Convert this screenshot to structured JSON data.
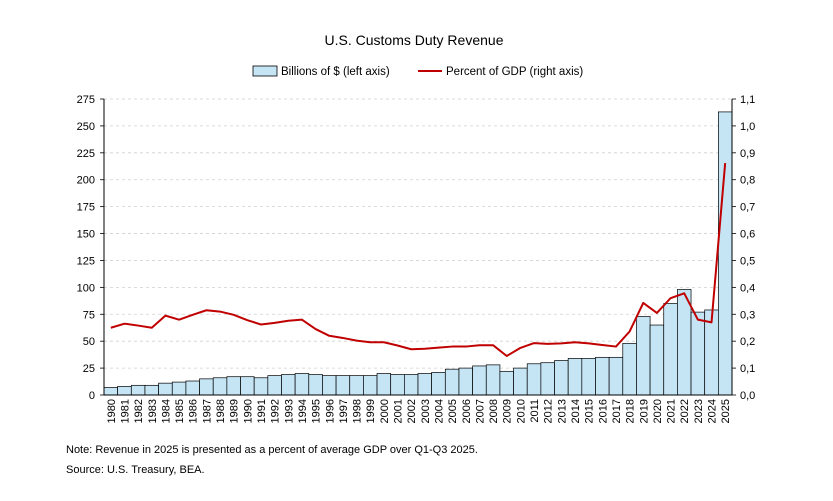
{
  "chart_data": {
    "type": "bar",
    "title": "U.S. Customs Duty Revenue",
    "categories": [
      "1980",
      "1981",
      "1982",
      "1983",
      "1984",
      "1985",
      "1986",
      "1987",
      "1988",
      "1989",
      "1990",
      "1991",
      "1992",
      "1993",
      "1994",
      "1995",
      "1996",
      "1997",
      "1998",
      "1999",
      "2000",
      "2001",
      "2002",
      "2003",
      "2004",
      "2005",
      "2006",
      "2007",
      "2008",
      "2009",
      "2010",
      "2011",
      "2012",
      "2013",
      "2014",
      "2015",
      "2016",
      "2017",
      "2018",
      "2019",
      "2020",
      "2021",
      "2022",
      "2023",
      "2024",
      "2025"
    ],
    "series": [
      {
        "name": "Billions of $ (left axis)",
        "type": "bar",
        "axis": "left",
        "color": "#C5E5F5",
        "values": [
          7,
          8,
          9,
          9,
          11,
          12,
          13,
          15,
          16,
          17,
          17,
          16,
          18,
          19,
          20,
          19,
          18,
          18,
          18,
          18,
          20,
          19,
          19,
          20,
          21,
          24,
          25,
          27,
          28,
          22,
          25,
          29,
          30,
          32,
          34,
          34,
          35,
          35,
          48,
          73,
          65,
          85,
          98,
          77,
          79,
          263
        ]
      },
      {
        "name": "Percent of GDP (right axis)",
        "type": "line",
        "axis": "right",
        "color": "#C00000",
        "values": [
          0.25,
          0.265,
          0.258,
          0.25,
          0.295,
          0.28,
          0.298,
          0.315,
          0.31,
          0.298,
          0.278,
          0.262,
          0.268,
          0.276,
          0.28,
          0.245,
          0.22,
          0.212,
          0.202,
          0.196,
          0.196,
          0.184,
          0.17,
          0.172,
          0.176,
          0.18,
          0.18,
          0.185,
          0.185,
          0.145,
          0.175,
          0.193,
          0.19,
          0.192,
          0.196,
          0.192,
          0.186,
          0.18,
          0.236,
          0.342,
          0.305,
          0.36,
          0.378,
          0.28,
          0.27,
          0.862
        ]
      }
    ],
    "y_left": {
      "min": 0,
      "max": 275,
      "ticks": [
        "0",
        "25",
        "50",
        "75",
        "100",
        "125",
        "150",
        "175",
        "200",
        "225",
        "250",
        "275"
      ]
    },
    "y_right": {
      "min": 0,
      "max": 1.1,
      "ticks": [
        "0,0",
        "0,1",
        "0,2",
        "0,3",
        "0,4",
        "0,5",
        "0,6",
        "0,7",
        "0,8",
        "0,9",
        "1,0",
        "1,1"
      ]
    },
    "grid": true,
    "legend_position": "top"
  },
  "notes": {
    "note": "Note: Revenue in 2025 is presented as a percent of average GDP over Q1-Q3 2025.",
    "source": "Source: U.S. Treasury, BEA."
  }
}
